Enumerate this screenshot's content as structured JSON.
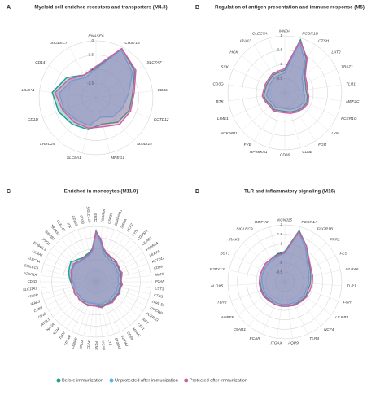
{
  "chart_data": [
    {
      "type": "radar",
      "panel_label": "A",
      "title": "Myeloid cell-enriched receptors and transporters (M4.3)",
      "categories": [
        "RNASE6",
        "CHST15",
        "SLC7A7",
        "CD86",
        "KCTD12",
        "MS4A14",
        "MPEG1",
        "SLC8A1",
        "LRRC25",
        "CD1D",
        "LILRA1",
        "CD14",
        "SIGLEC7"
      ],
      "ylim": [
        -2,
        0
      ],
      "yticks": [
        -1.5,
        -1,
        -0.5,
        0
      ],
      "series": [
        {
          "name": "Before immunization",
          "color": "#1a9e8f",
          "values": [
            -0.95,
            -0.05,
            -0.35,
            -0.7,
            -0.75,
            -0.85,
            -1.05,
            -0.85,
            -0.75,
            -0.6,
            -0.45,
            -0.75,
            -1.1
          ]
        },
        {
          "name": "Unprotected after immunization",
          "color": "#4fb6e8",
          "values": [
            -1.0,
            -0.1,
            -0.45,
            -0.85,
            -1.0,
            -1.1,
            -1.3,
            -1.0,
            -0.95,
            -0.8,
            -0.7,
            -0.95,
            -1.2
          ]
        },
        {
          "name": "Protected after immunization",
          "color": "#cc5fa0",
          "values": [
            -0.9,
            -0.05,
            -0.3,
            -0.65,
            -0.7,
            -0.75,
            -0.95,
            -0.9,
            -0.85,
            -0.75,
            -0.55,
            -0.85,
            -1.1
          ]
        }
      ]
    },
    {
      "type": "radar",
      "panel_label": "B",
      "title": "Regulation of antigen presentation and immune response (M5)",
      "categories": [
        "MNDA",
        "FCGR1B",
        "CTSH",
        "LAT2",
        "TRAT1",
        "TLR1",
        "MEF2C",
        "FCER1G",
        "LYN",
        "FGR",
        "CD3E",
        "CD86",
        "RPS6KA1",
        "FYB",
        "NCKAP1L",
        "LIME1",
        "BTK",
        "CD3G",
        "SYK",
        "HCK",
        "IRAK3",
        "CLEC7A"
      ],
      "ylim": [
        -1,
        1
      ],
      "yticks": [
        -0.5,
        0,
        0.5,
        1
      ],
      "series": [
        {
          "name": "Before immunization",
          "color": "#1a9e8f",
          "values": [
            -0.2,
            0.95,
            0.4,
            -0.1,
            -0.2,
            -0.25,
            -0.2,
            -0.15,
            -0.2,
            -0.25,
            -0.3,
            -0.35,
            -0.35,
            -0.3,
            -0.35,
            -0.3,
            -0.25,
            -0.3,
            -0.3,
            -0.3,
            -0.25,
            -0.25
          ]
        },
        {
          "name": "Unprotected after immunization",
          "color": "#4fb6e8",
          "values": [
            -0.3,
            0.85,
            0.3,
            -0.2,
            -0.3,
            -0.35,
            -0.3,
            -0.25,
            -0.3,
            -0.35,
            -0.4,
            -0.45,
            -0.45,
            -0.4,
            -0.45,
            -0.4,
            -0.35,
            -0.4,
            -0.4,
            -0.4,
            -0.35,
            -0.35
          ]
        },
        {
          "name": "Protected after immunization",
          "color": "#cc5fa0",
          "values": [
            -0.15,
            0.9,
            0.45,
            -0.05,
            -0.15,
            -0.2,
            -0.15,
            -0.1,
            -0.15,
            -0.2,
            -0.25,
            -0.3,
            -0.3,
            -0.25,
            -0.3,
            -0.25,
            -0.2,
            -0.25,
            -0.25,
            -0.25,
            -0.2,
            -0.2
          ]
        }
      ]
    },
    {
      "type": "radar",
      "panel_label": "C",
      "title": "Enriched in monocytes (M11.0)",
      "rotate_labels": true,
      "categories": [
        "CD93",
        "FCGR2A",
        "CSF3R",
        "SERPINA1",
        "SIRPA",
        "NCF2",
        "LYN",
        "CD300A",
        "LILRB2",
        "FCGR3A",
        "LILRA5",
        "KCTD12",
        "CD86",
        "MAFB",
        "PSAP",
        "CST3",
        "CTSS",
        "LGALS3",
        "TYROBP",
        "FCER1G",
        "AIF1",
        "LST1",
        "MS4A7",
        "CD68",
        "S100A9",
        "S100A8",
        "LYZ",
        "VCAN",
        "FCN1",
        "CD14",
        "MNDA",
        "CEBPB",
        "ITGAM",
        "TLR2",
        "TLR4",
        "NAGA",
        "ACSL1",
        "CD36",
        "CYBB",
        "IRAK3",
        "PTAFR",
        "SLC11A1",
        "CD1D",
        "FCGR1A",
        "SIGLEC9",
        "CLEC4A",
        "LILRA1",
        "EPB41L3",
        "PYGL",
        "SIRPB1",
        "TBXAS1",
        "CLEC4E",
        "HCK",
        "CD163",
        "CD33",
        "SIGLEC10"
      ],
      "ylim": [
        -1,
        1.5
      ],
      "series": [
        {
          "name": "Before immunization",
          "color": "#1a9e8f",
          "values": [
            1.3,
            0.9,
            0.5,
            0.35,
            0.3,
            0.25,
            0.2,
            0.25,
            0.2,
            0.2,
            0.15,
            0.2,
            0.15,
            0.1,
            0.1,
            0.15,
            0.1,
            0.1,
            0.15,
            0.1,
            0.1,
            0.1,
            0.15,
            0.1,
            0.1,
            0.1,
            0.15,
            0.1,
            0.1,
            0.05,
            0.1,
            0.1,
            0.1,
            0.05,
            0.1,
            0.1,
            0.05,
            0.1,
            0.1,
            0.05,
            0.1,
            0.1,
            0.15,
            0.2,
            0.25,
            0.3,
            0.35,
            0.4,
            0.45,
            0.35,
            0.3,
            0.25,
            0.25,
            0.3,
            0.35,
            0.5
          ]
        },
        {
          "name": "Unprotected after immunization",
          "color": "#4fb6e8",
          "values": [
            1.2,
            0.8,
            0.4,
            0.25,
            0.2,
            0.15,
            0.1,
            0.15,
            0.1,
            0.1,
            0.05,
            0.1,
            0.05,
            0.0,
            0.0,
            0.05,
            0.0,
            0.0,
            0.05,
            0.0,
            0.0,
            0.0,
            0.05,
            0.0,
            0.0,
            0.0,
            0.05,
            0.0,
            0.0,
            -0.05,
            0.0,
            0.0,
            0.0,
            -0.05,
            0.0,
            0.0,
            -0.05,
            0.0,
            0.0,
            -0.05,
            0.0,
            0.0,
            0.05,
            0.1,
            0.1,
            0.15,
            0.2,
            0.2,
            0.25,
            0.2,
            0.15,
            0.15,
            0.15,
            0.2,
            0.25,
            0.4
          ]
        },
        {
          "name": "Protected after immunization",
          "color": "#cc5fa0",
          "values": [
            1.25,
            0.95,
            0.55,
            0.4,
            0.35,
            0.3,
            0.3,
            0.3,
            0.25,
            0.25,
            0.2,
            0.25,
            0.2,
            0.15,
            0.15,
            0.2,
            0.15,
            0.15,
            0.2,
            0.15,
            0.15,
            0.15,
            0.2,
            0.15,
            0.15,
            0.15,
            0.2,
            0.15,
            0.1,
            0.1,
            0.1,
            0.15,
            0.1,
            0.1,
            0.1,
            0.1,
            0.05,
            0.1,
            0.1,
            0.05,
            0.1,
            0.1,
            0.1,
            0.15,
            0.15,
            0.2,
            0.25,
            0.25,
            0.3,
            0.25,
            0.2,
            0.2,
            0.2,
            0.25,
            0.3,
            0.45
          ]
        }
      ]
    },
    {
      "type": "radar",
      "panel_label": "D",
      "title": "TLR and inflammatory signaling (M16)",
      "categories": [
        "KCNJ15",
        "FCGR1A",
        "FCGR1B",
        "FPR2",
        "FES",
        "LILRA6",
        "TLR1",
        "FGR",
        "LILRB3",
        "NCF4",
        "TLR4",
        "AQP9",
        "ITGAX",
        "FCAR",
        "C5AR1",
        "ANPEP",
        "TLR8",
        "ALOX5",
        "P2RY13",
        "BST1",
        "IRAK3",
        "SIGLEC9",
        "WDFY3"
      ],
      "ylim": [
        -1,
        2
      ],
      "yticks": [
        -0.5,
        0,
        0.5,
        1,
        1.5,
        2
      ],
      "series": [
        {
          "name": "Before immunization",
          "color": "#1a9e8f",
          "values": [
            0.6,
            1.8,
            1.2,
            0.7,
            0.5,
            0.4,
            0.35,
            0.3,
            0.35,
            0.3,
            0.3,
            0.3,
            0.3,
            0.3,
            0.25,
            0.3,
            0.3,
            0.3,
            0.35,
            0.35,
            0.4,
            0.4,
            0.5
          ]
        },
        {
          "name": "Unprotected after immunization",
          "color": "#4fb6e8",
          "values": [
            0.5,
            1.7,
            1.1,
            0.6,
            0.4,
            0.3,
            0.25,
            0.2,
            0.25,
            0.2,
            0.2,
            0.2,
            0.2,
            0.2,
            0.15,
            0.2,
            0.2,
            0.2,
            0.25,
            0.25,
            0.3,
            0.3,
            0.4
          ]
        },
        {
          "name": "Protected after immunization",
          "color": "#cc5fa0",
          "values": [
            0.55,
            1.75,
            1.2,
            0.75,
            0.55,
            0.5,
            0.45,
            0.4,
            0.4,
            0.35,
            0.35,
            0.3,
            0.3,
            0.3,
            0.3,
            0.35,
            0.35,
            0.35,
            0.35,
            0.35,
            0.4,
            0.4,
            0.45
          ]
        }
      ]
    }
  ]
}
